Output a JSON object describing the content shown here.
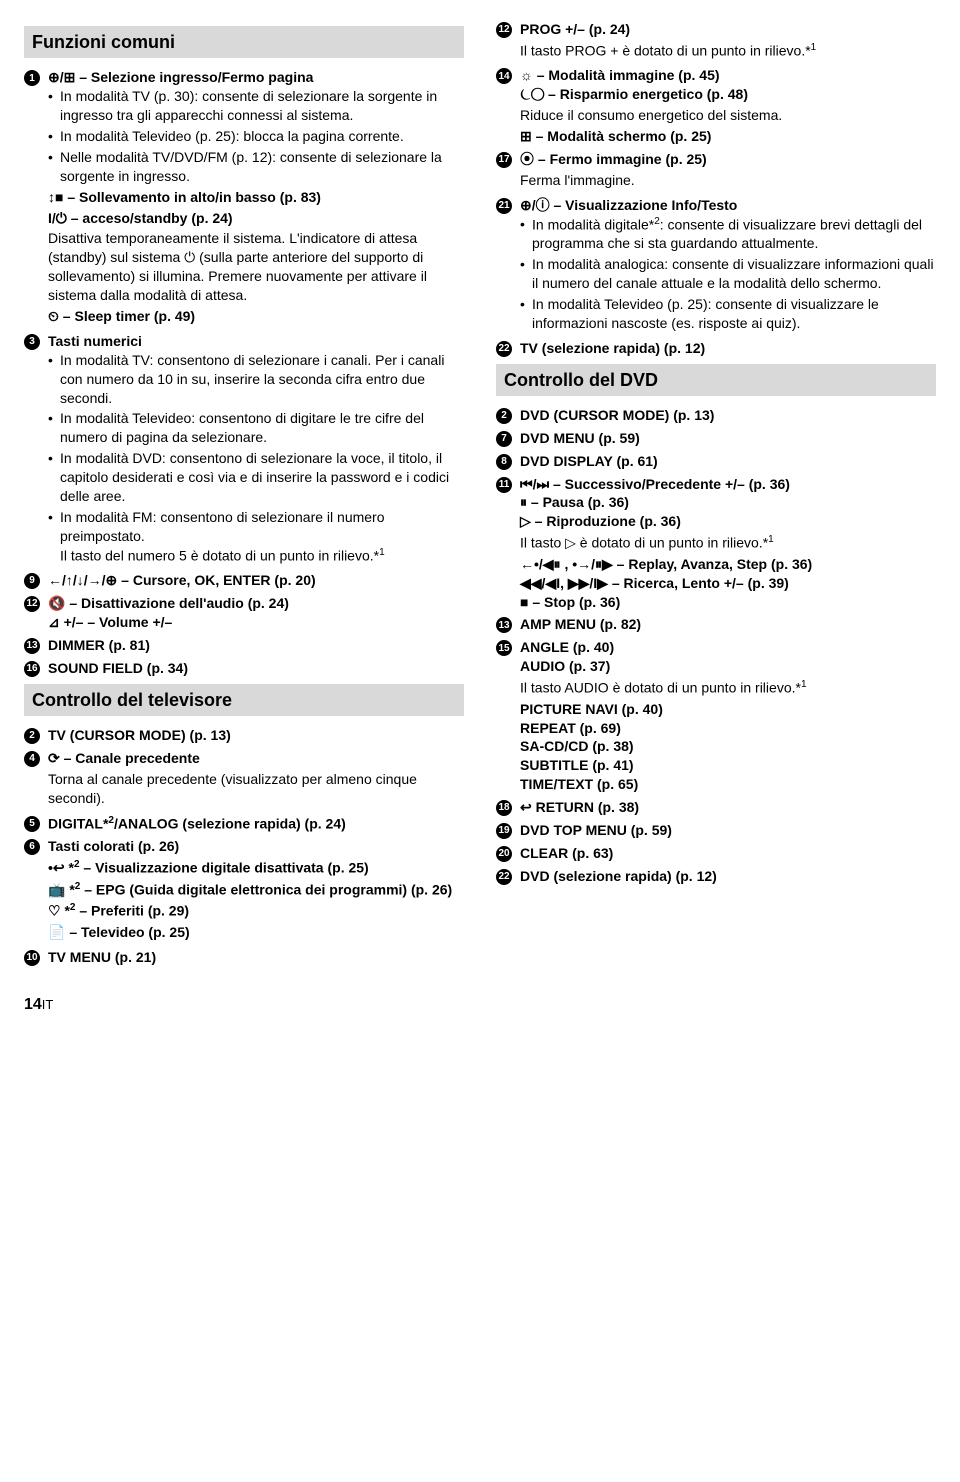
{
  "page_number": "14",
  "page_suffix": "IT",
  "left": {
    "section1_title": "Funzioni comuni",
    "i1": {
      "num": "1",
      "head": "⊕/⊞ – Selezione ingresso/Fermo pagina",
      "bullets": [
        "In modalità TV (p. 30): consente di selezionare la sorgente in ingresso tra gli apparecchi connessi al sistema.",
        "In modalità Televideo (p. 25): blocca la pagina corrente.",
        "Nelle modalità TV/DVD/FM (p. 12): consente di selezionare la sorgente in ingresso."
      ],
      "bold2": "↕■ – Sollevamento in alto/in basso (p. 83)",
      "bold3": "I/⏻ – acceso/standby (p. 24)",
      "desc3": "Disattiva temporaneamente il sistema. L'indicatore di attesa (standby) sul sistema ⏻ (sulla parte anteriore del supporto di sollevamento) si illumina. Premere nuovamente per attivare il sistema dalla modalità di attesa.",
      "bold4": "⏲ – Sleep timer (p. 49)"
    },
    "i3": {
      "num": "3",
      "head": "Tasti numerici",
      "bullets": [
        "In modalità TV: consentono di selezionare i canali. Per i canali con numero da 10 in su, inserire la seconda cifra entro due secondi.",
        "In modalità Televideo: consentono di digitare le tre cifre del numero di pagina da selezionare.",
        "In modalità DVD: consentono di selezionare la voce, il titolo, il capitolo desiderati e così via e di inserire la password e i codici delle aree.",
        "In modalità FM: consentono di selezionare il numero preimpostato."
      ],
      "trail": "Il tasto del numero 5 è dotato di un punto in rilievo.*",
      "trail_sup": "1"
    },
    "i9": {
      "num": "9",
      "head": "←/↑/↓/→/⊕ – Cursore, OK, ENTER (p. 20)"
    },
    "i12": {
      "num": "12",
      "head1": "🔇 – Disattivazione dell'audio (p. 24)",
      "head2": "⊿ +/– – Volume +/–"
    },
    "i13": {
      "num": "13",
      "head": "DIMMER (p. 81)"
    },
    "i16": {
      "num": "16",
      "head": "SOUND FIELD (p. 34)"
    },
    "section2_title": "Controllo del televisore",
    "i2": {
      "num": "2",
      "head": "TV (CURSOR MODE) (p. 13)"
    },
    "i4": {
      "num": "4",
      "head": "⟳ – Canale precedente",
      "desc": "Torna al canale precedente (visualizzato per almeno cinque secondi)."
    },
    "i5": {
      "num": "5",
      "head_pre": "DIGITAL*",
      "head_sup": "2",
      "head_post": "/ANALOG (selezione rapida) (p. 24)"
    },
    "i6": {
      "num": "6",
      "head": "Tasti colorati (p. 26)",
      "l1_pre": "•↩ *",
      "l1_sup": "2",
      "l1_post": " – Visualizzazione digitale disattivata (p. 25)",
      "l2_pre": "📺 *",
      "l2_sup": "2",
      "l2_post": " – EPG (Guida digitale elettronica dei programmi) (p. 26)",
      "l3_pre": "♡ *",
      "l3_sup": "2",
      "l3_post": " – Preferiti (p. 29)",
      "l4": "📄 – Televideo (p. 25)"
    },
    "i10": {
      "num": "10",
      "head": "TV MENU (p. 21)"
    }
  },
  "right": {
    "i12r": {
      "num": "12",
      "head": "PROG +/– (p. 24)",
      "desc": "Il tasto PROG + è dotato di un punto in rilievo.*",
      "desc_sup": "1"
    },
    "i14": {
      "num": "14",
      "l1": "☼ – Modalità immagine (p. 45)",
      "l2": "⏾◯ – Risparmio energetico (p. 48)",
      "l2desc": "Riduce il consumo energetico del sistema.",
      "l3": "⊞ – Modalità schermo (p. 25)"
    },
    "i17": {
      "num": "17",
      "head": "⦿ – Fermo immagine (p. 25)",
      "desc": "Ferma l'immagine."
    },
    "i21": {
      "num": "21",
      "head": "⊕/ⓘ – Visualizzazione Info/Testo",
      "b1_pre": "In modalità digitale*",
      "b1_sup": "2",
      "b1_post": ": consente di visualizzare brevi dettagli del programma che si sta guardando attualmente.",
      "b2": "In modalità analogica: consente di visualizzare informazioni quali il numero del canale attuale e la modalità dello schermo.",
      "b3": "In modalità Televideo (p. 25): consente di visualizzare le informazioni nascoste (es. risposte ai quiz)."
    },
    "i22": {
      "num": "22",
      "head": "TV (selezione rapida) (p. 12)"
    },
    "section3_title": "Controllo del DVD",
    "d2": {
      "num": "2",
      "head": "DVD (CURSOR MODE) (p. 13)"
    },
    "d7": {
      "num": "7",
      "head": "DVD MENU (p. 59)"
    },
    "d8": {
      "num": "8",
      "head": "DVD DISPLAY (p. 61)"
    },
    "d11": {
      "num": "11",
      "l1": "⏮/⏭ – Successivo/Precedente +/– (p. 36)",
      "l2": "⏸ – Pausa (p. 36)",
      "l3": "▷ – Riproduzione (p. 36)",
      "l3desc": "Il tasto ▷ è dotato di un punto in rilievo.*",
      "l3sup": "1",
      "l4": "←•/◀⏸ , •→/⏸▶ – Replay, Avanza, Step (p. 36)",
      "l5": "◀◀/◀I, ▶▶/I▶ – Ricerca, Lento +/– (p. 39)",
      "l6": "■ – Stop (p. 36)"
    },
    "d13": {
      "num": "13",
      "head": "AMP MENU (p. 82)"
    },
    "d15": {
      "num": "15",
      "l1": "ANGLE (p. 40)",
      "l2": "AUDIO (p. 37)",
      "l2desc": "Il tasto AUDIO è dotato di un punto in rilievo.*",
      "l2sup": "1",
      "l3": "PICTURE NAVI (p. 40)",
      "l4": "REPEAT (p. 69)",
      "l5": "SA-CD/CD (p. 38)",
      "l6": "SUBTITLE (p. 41)",
      "l7": "TIME/TEXT (p. 65)"
    },
    "d18": {
      "num": "18",
      "head": "↩ RETURN (p. 38)"
    },
    "d19": {
      "num": "19",
      "head": "DVD TOP MENU (p. 59)"
    },
    "d20": {
      "num": "20",
      "head": "CLEAR (p. 63)"
    },
    "d22": {
      "num": "22",
      "head": "DVD (selezione rapida) (p. 12)"
    }
  }
}
